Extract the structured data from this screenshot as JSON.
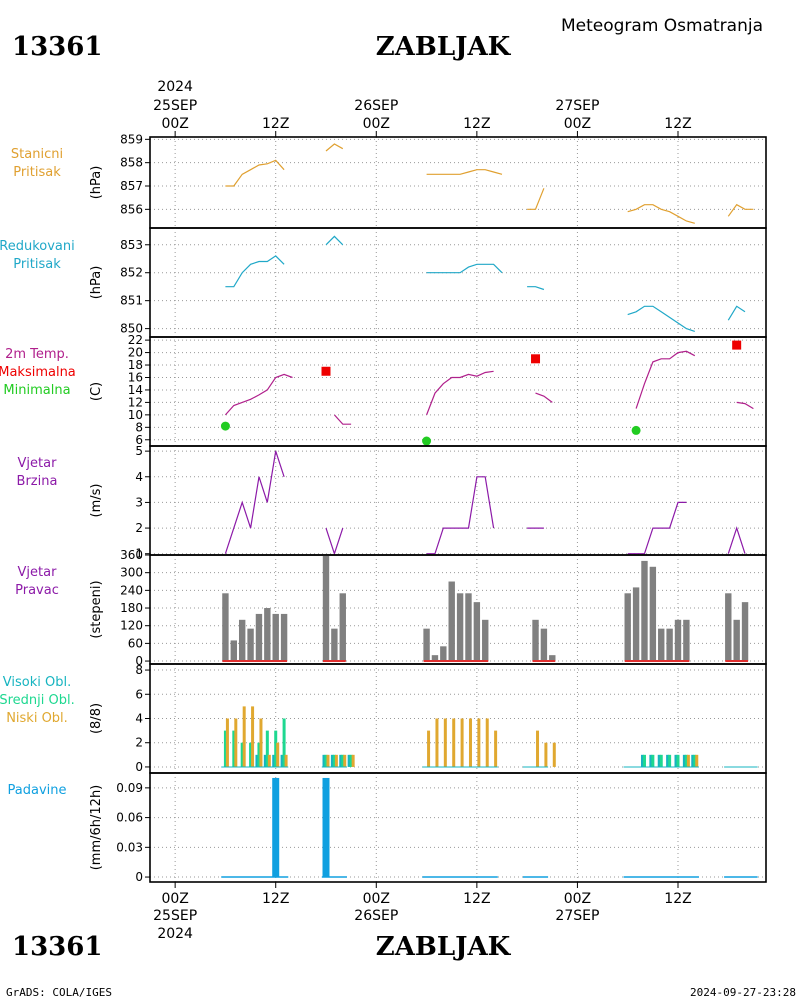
{
  "header": {
    "station_id": "13361",
    "station_name": "ZABLJAK",
    "title": "Meteogram Osmatranja"
  },
  "footer": {
    "station_id": "13361",
    "station_name": "ZABLJAK",
    "credit": "GrADS: COLA/IGES",
    "timestamp": "2024-09-27-23:28"
  },
  "time_axis": {
    "top": {
      "year": "2024",
      "ticks": [
        {
          "hour": 0,
          "lines": [
            "25SEP",
            "00Z"
          ]
        },
        {
          "hour": 12,
          "lines": [
            "12Z"
          ]
        },
        {
          "hour": 24,
          "lines": [
            "26SEP",
            "00Z"
          ]
        },
        {
          "hour": 36,
          "lines": [
            "12Z"
          ]
        },
        {
          "hour": 48,
          "lines": [
            "27SEP",
            "00Z"
          ]
        },
        {
          "hour": 60,
          "lines": [
            "12Z"
          ]
        }
      ]
    },
    "bottom": {
      "year": "2024",
      "ticks": [
        {
          "hour": 0,
          "lines": [
            "00Z",
            "25SEP"
          ]
        },
        {
          "hour": 12,
          "lines": [
            "12Z"
          ]
        },
        {
          "hour": 24,
          "lines": [
            "00Z",
            "26SEP"
          ]
        },
        {
          "hour": 36,
          "lines": [
            "12Z"
          ]
        },
        {
          "hour": 48,
          "lines": [
            "00Z",
            "27SEP"
          ]
        },
        {
          "hour": 60,
          "lines": [
            "12Z"
          ]
        }
      ]
    },
    "xlim": [
      -3,
      70.5
    ]
  },
  "colors": {
    "pressure": "#e0a030",
    "reduced": "#20a8c8",
    "temp": "#b0208c",
    "tmax": "#ee0000",
    "tmin": "#22cc22",
    "wind": "#8c1aa8",
    "bars": "#808080",
    "bar_base": "#e03030",
    "high_cloud": "#16b4c0",
    "mid_cloud": "#1ed890",
    "low_cloud": "#e0a830",
    "precip": "#10a0e0"
  },
  "chart_data": [
    {
      "id": "station_pressure",
      "type": "line",
      "labels": [
        "Stanicni",
        "Pritisak"
      ],
      "unit": "(hPa)",
      "ylim": [
        855.2,
        859.1
      ],
      "ticks": [
        "856",
        "857",
        "858",
        "859"
      ],
      "tick_values": [
        856,
        857,
        858,
        859
      ],
      "segments": [
        [
          [
            6,
            857
          ],
          [
            7,
            857
          ],
          [
            8,
            857.5
          ],
          [
            9,
            857.7
          ],
          [
            10,
            857.9
          ],
          [
            11,
            857.95
          ],
          [
            12,
            858.1
          ],
          [
            13,
            857.7
          ]
        ],
        [
          [
            18,
            858.5
          ],
          [
            19,
            858.8
          ],
          [
            20,
            858.6
          ]
        ],
        [
          [
            30,
            857.5
          ],
          [
            31,
            857.5
          ],
          [
            32,
            857.5
          ],
          [
            33,
            857.5
          ],
          [
            34,
            857.5
          ],
          [
            35,
            857.6
          ],
          [
            36,
            857.7
          ],
          [
            37,
            857.7
          ],
          [
            38,
            857.6
          ],
          [
            39,
            857.5
          ]
        ],
        [
          [
            42,
            856
          ],
          [
            43,
            856
          ],
          [
            44,
            856.9
          ]
        ],
        [
          [
            54,
            855.9
          ],
          [
            55,
            856
          ],
          [
            56,
            856.2
          ],
          [
            57,
            856.2
          ],
          [
            58,
            856
          ],
          [
            59,
            855.9
          ],
          [
            60,
            855.7
          ],
          [
            61,
            855.5
          ],
          [
            62,
            855.4
          ]
        ],
        [
          [
            66,
            855.7
          ],
          [
            67,
            856.2
          ],
          [
            68,
            856
          ],
          [
            69,
            856
          ]
        ]
      ]
    },
    {
      "id": "reduced_pressure",
      "type": "line",
      "labels": [
        "Redukovani",
        "Pritisak"
      ],
      "unit": "(hPa)",
      "ylim": [
        849.7,
        853.6
      ],
      "ticks": [
        "850",
        "851",
        "852",
        "853"
      ],
      "tick_values": [
        850,
        851,
        852,
        853
      ],
      "segments": [
        [
          [
            6,
            851.5
          ],
          [
            7,
            851.5
          ],
          [
            8,
            852
          ],
          [
            9,
            852.3
          ],
          [
            10,
            852.4
          ],
          [
            11,
            852.4
          ],
          [
            12,
            852.6
          ],
          [
            13,
            852.3
          ]
        ],
        [
          [
            18,
            853
          ],
          [
            19,
            853.3
          ],
          [
            20,
            853
          ]
        ],
        [
          [
            30,
            852
          ],
          [
            31,
            852
          ],
          [
            32,
            852
          ],
          [
            33,
            852
          ],
          [
            34,
            852
          ],
          [
            35,
            852.2
          ],
          [
            36,
            852.3
          ],
          [
            37,
            852.3
          ],
          [
            38,
            852.3
          ],
          [
            39,
            852
          ]
        ],
        [
          [
            42,
            851.5
          ],
          [
            43,
            851.5
          ],
          [
            44,
            851.4
          ]
        ],
        [
          [
            54,
            850.5
          ],
          [
            55,
            850.6
          ],
          [
            56,
            850.8
          ],
          [
            57,
            850.8
          ],
          [
            58,
            850.6
          ],
          [
            59,
            850.4
          ],
          [
            60,
            850.2
          ],
          [
            61,
            850
          ],
          [
            62,
            849.9
          ]
        ],
        [
          [
            66,
            850.3
          ],
          [
            67,
            850.8
          ],
          [
            68,
            850.6
          ]
        ]
      ]
    },
    {
      "id": "temperature",
      "type": "line",
      "labels": [
        "2m Temp.",
        "Maksimalna",
        "Minimalna"
      ],
      "unit": "(C)",
      "ylim": [
        5,
        22.5
      ],
      "ticks": [
        "6",
        "8",
        "10",
        "12",
        "14",
        "16",
        "18",
        "20",
        "22"
      ],
      "tick_values": [
        6,
        8,
        10,
        12,
        14,
        16,
        18,
        20,
        22
      ],
      "segments": [
        [
          [
            6,
            10
          ],
          [
            7,
            11.5
          ],
          [
            8,
            12
          ],
          [
            9,
            12.5
          ],
          [
            10,
            13.2
          ],
          [
            11,
            14
          ],
          [
            12,
            16
          ],
          [
            13,
            16.5
          ],
          [
            14,
            16
          ]
        ],
        [
          [
            19,
            10
          ],
          [
            20,
            8.5
          ],
          [
            21,
            8.5
          ]
        ],
        [
          [
            30,
            10
          ],
          [
            31,
            13.5
          ],
          [
            32,
            15
          ],
          [
            33,
            16
          ],
          [
            34,
            16
          ],
          [
            35,
            16.5
          ],
          [
            36,
            16.2
          ],
          [
            37,
            16.8
          ],
          [
            38,
            17
          ]
        ],
        [
          [
            43,
            13.5
          ],
          [
            44,
            13
          ],
          [
            45,
            12
          ]
        ],
        [
          [
            55,
            11
          ],
          [
            56,
            15
          ],
          [
            57,
            18.5
          ],
          [
            58,
            19
          ],
          [
            59,
            19
          ],
          [
            60,
            20
          ],
          [
            61,
            20.2
          ],
          [
            62,
            19.5
          ]
        ],
        [
          [
            67,
            12
          ],
          [
            68,
            11.8
          ],
          [
            69,
            11
          ]
        ]
      ],
      "maxima": [
        [
          18,
          17
        ],
        [
          43,
          19
        ],
        [
          67,
          21.2
        ]
      ],
      "minima": [
        [
          6,
          8.2
        ],
        [
          30,
          5.8
        ],
        [
          55,
          7.5
        ]
      ]
    },
    {
      "id": "wind_speed",
      "type": "line",
      "labels": [
        "Vjetar",
        "Brzina"
      ],
      "unit": "(m/s)",
      "ylim": [
        0.95,
        5.2
      ],
      "ticks": [
        "1",
        "2",
        "3",
        "4",
        "5"
      ],
      "tick_values": [
        1,
        2,
        3,
        4,
        5
      ],
      "segments": [
        [
          [
            6,
            1
          ],
          [
            7,
            2
          ],
          [
            8,
            3
          ],
          [
            9,
            2
          ],
          [
            10,
            4
          ],
          [
            11,
            3
          ],
          [
            12,
            5
          ],
          [
            13,
            4
          ]
        ],
        [
          [
            18,
            2
          ],
          [
            19,
            1
          ],
          [
            20,
            2
          ]
        ],
        [
          [
            30,
            1
          ],
          [
            31,
            1
          ],
          [
            32,
            2
          ],
          [
            33,
            2
          ],
          [
            34,
            2
          ],
          [
            35,
            2
          ],
          [
            36,
            4
          ],
          [
            37,
            4
          ],
          [
            38,
            2
          ]
        ],
        [
          [
            42,
            2
          ],
          [
            43,
            2
          ],
          [
            44,
            2
          ]
        ],
        [
          [
            54,
            1
          ],
          [
            55,
            1
          ],
          [
            56,
            1
          ],
          [
            57,
            2
          ],
          [
            58,
            2
          ],
          [
            59,
            2
          ],
          [
            60,
            3
          ],
          [
            61,
            3
          ]
        ],
        [
          [
            66,
            1
          ],
          [
            67,
            2
          ],
          [
            68,
            1
          ]
        ]
      ]
    },
    {
      "id": "wind_direction",
      "type": "bar",
      "labels": [
        "Vjetar",
        "Pravac"
      ],
      "unit": "(stepeni)",
      "ylim": [
        -10,
        360
      ],
      "ticks": [
        "0",
        "60",
        "120",
        "180",
        "240",
        "300",
        "360"
      ],
      "tick_values": [
        0,
        60,
        120,
        180,
        240,
        300,
        360
      ],
      "x": [
        6,
        7,
        8,
        9,
        10,
        11,
        12,
        13,
        18,
        19,
        20,
        30,
        31,
        32,
        33,
        34,
        35,
        36,
        37,
        43,
        44,
        45,
        54,
        55,
        56,
        57,
        58,
        59,
        60,
        61,
        66,
        67,
        68
      ],
      "values": [
        230,
        70,
        140,
        110,
        160,
        180,
        160,
        160,
        360,
        110,
        230,
        110,
        20,
        50,
        270,
        230,
        230,
        200,
        140,
        140,
        110,
        20,
        230,
        250,
        340,
        320,
        110,
        110,
        140,
        140,
        230,
        140,
        200
      ]
    },
    {
      "id": "cloud_cover",
      "type": "bar",
      "labels": [
        "Visoki Obl.",
        "Srednji Obl.",
        "Niski Obl."
      ],
      "unit": "(8/8)",
      "ylim": [
        -0.5,
        8.5
      ],
      "ticks": [
        "0",
        "2",
        "4",
        "6",
        "8"
      ],
      "tick_values": [
        0,
        2,
        4,
        6,
        8
      ],
      "x": [
        6,
        7,
        8,
        9,
        10,
        11,
        12,
        13,
        18,
        19,
        20,
        21,
        30,
        31,
        32,
        33,
        34,
        35,
        36,
        37,
        38,
        43,
        44,
        45,
        54,
        55,
        56,
        57,
        58,
        59,
        60,
        61,
        62,
        66,
        67,
        68,
        69
      ],
      "series": [
        {
          "name": "Visoki Obl.",
          "values": [
            0,
            0,
            0,
            0,
            1,
            1,
            1,
            1,
            1,
            1,
            1,
            1,
            0,
            0,
            0,
            0,
            0,
            0,
            0,
            0,
            0,
            0,
            0,
            0,
            0,
            0,
            1,
            1,
            1,
            1,
            1,
            1,
            1,
            0,
            0,
            0,
            0
          ]
        },
        {
          "name": "Srednji Obl.",
          "values": [
            3,
            3,
            2,
            2,
            2,
            3,
            3,
            4,
            1,
            1,
            1,
            1,
            0,
            0,
            0,
            0,
            0,
            0,
            0,
            0,
            0,
            0,
            0,
            0,
            0,
            0,
            1,
            1,
            1,
            1,
            1,
            1,
            1,
            0,
            0,
            0,
            0
          ]
        },
        {
          "name": "Niski Obl.",
          "values": [
            4,
            4,
            5,
            5,
            4,
            1,
            2,
            1,
            1,
            1,
            1,
            1,
            3,
            4,
            4,
            4,
            4,
            4,
            4,
            4,
            3,
            3,
            2,
            2,
            0,
            0,
            0,
            0,
            0,
            0,
            0,
            1,
            1,
            0,
            0,
            0,
            0
          ]
        }
      ]
    },
    {
      "id": "precipitation",
      "type": "bar",
      "labels": [
        "Padavine"
      ],
      "unit": "(mm/6h/12h)",
      "ylim": [
        -0.005,
        0.105
      ],
      "ticks": [
        "0",
        "0.03",
        "0.06",
        "0.09"
      ],
      "tick_values": [
        0,
        0.03,
        0.06,
        0.09
      ],
      "x": [
        12,
        18
      ],
      "values": [
        0.1,
        0.1
      ],
      "trace_segments": [
        [
          5.5,
          13.5
        ],
        [
          17.5,
          20.5
        ],
        [
          29.5,
          38.5
        ],
        [
          41.5,
          44.5
        ],
        [
          53.5,
          62.5
        ],
        [
          65.5,
          69.5
        ]
      ]
    }
  ]
}
